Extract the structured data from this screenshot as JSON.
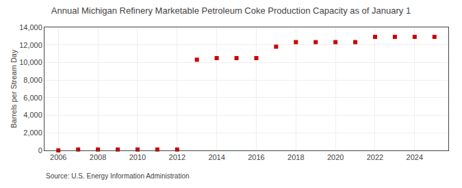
{
  "chart_data": {
    "type": "scatter",
    "title": "Annual Michigan Refinery Marketable Petroleum Coke Production Capacity as of January 1",
    "y_label": "Barrels per Stream Day",
    "annotations": [
      "Source: U.S. Energy Information Administration"
    ],
    "x": [
      2006,
      2007,
      2008,
      2009,
      2010,
      2011,
      2012,
      2013,
      2014,
      2015,
      2016,
      2017,
      2018,
      2019,
      2020,
      2021,
      2022,
      2023,
      2024,
      2025
    ],
    "values": [
      0,
      100,
      100,
      100,
      100,
      100,
      100,
      10318,
      10500,
      10500,
      10500,
      11800,
      12318,
      12318,
      12318,
      12318,
      12918,
      12918,
      12918,
      12918
    ],
    "color": "#cc0000",
    "marker": "square",
    "xlim": [
      2005.3,
      2025.7
    ],
    "xticks": [
      2006,
      2008,
      2010,
      2012,
      2014,
      2016,
      2018,
      2020,
      2022,
      2024
    ],
    "ylim": [
      0,
      14000
    ],
    "yticks": [
      0,
      {
        "value": 2000,
        "label": "2,000"
      },
      {
        "value": 4000,
        "label": "4,000"
      },
      {
        "value": 6000,
        "label": "6,000"
      },
      {
        "value": 8000,
        "label": "8,000"
      },
      {
        "value": 10000,
        "label": "10,000"
      },
      {
        "value": 12000,
        "label": "12,000"
      },
      {
        "value": 14000,
        "label": "14,000"
      }
    ],
    "grid": true
  }
}
